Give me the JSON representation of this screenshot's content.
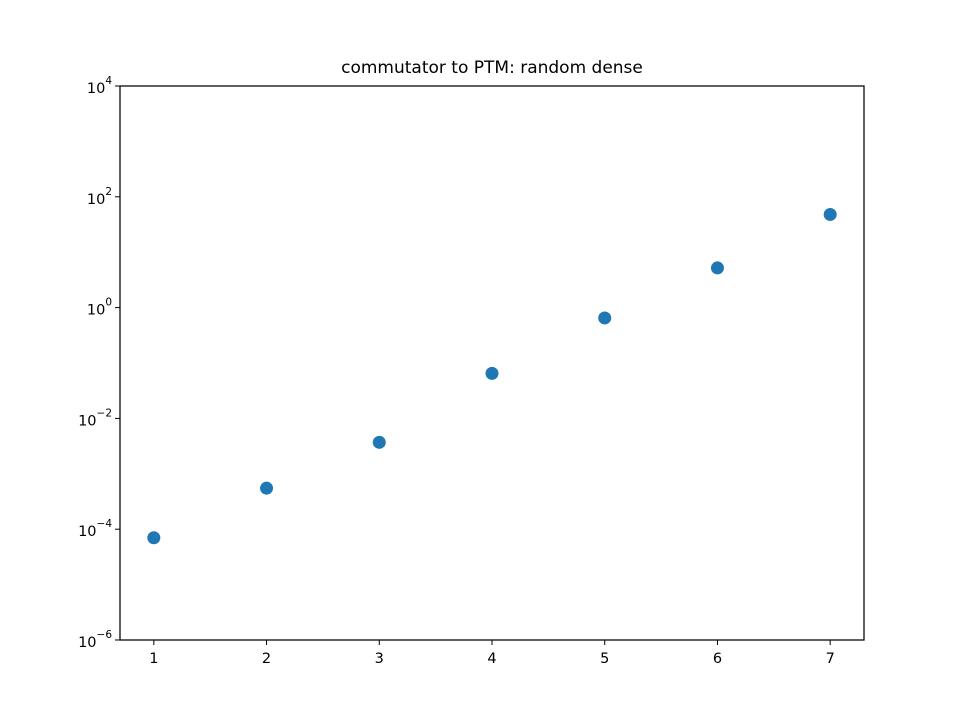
{
  "chart_data": {
    "type": "scatter",
    "title": "commutator to PTM: random dense",
    "xlabel": "",
    "ylabel": "",
    "x": [
      1,
      2,
      3,
      4,
      5,
      6,
      7
    ],
    "y": [
      7e-05,
      0.00055,
      0.0037,
      0.065,
      0.65,
      5.2,
      48
    ],
    "xlim": [
      0.7,
      7.3
    ],
    "ylim": [
      1e-06,
      10000
    ],
    "yscale": "log",
    "xticks": [
      1,
      2,
      3,
      4,
      5,
      6,
      7
    ],
    "yticks": [
      {
        "value": 1e-06,
        "base": "10",
        "exp": "−6"
      },
      {
        "value": 0.0001,
        "base": "10",
        "exp": "−4"
      },
      {
        "value": 0.01,
        "base": "10",
        "exp": "−2"
      },
      {
        "value": 1,
        "base": "10",
        "exp": "0"
      },
      {
        "value": 100,
        "base": "10",
        "exp": "2"
      },
      {
        "value": 10000,
        "base": "10",
        "exp": "4"
      }
    ],
    "marker_color": "#1f77b4",
    "grid": false,
    "legend": "none"
  }
}
